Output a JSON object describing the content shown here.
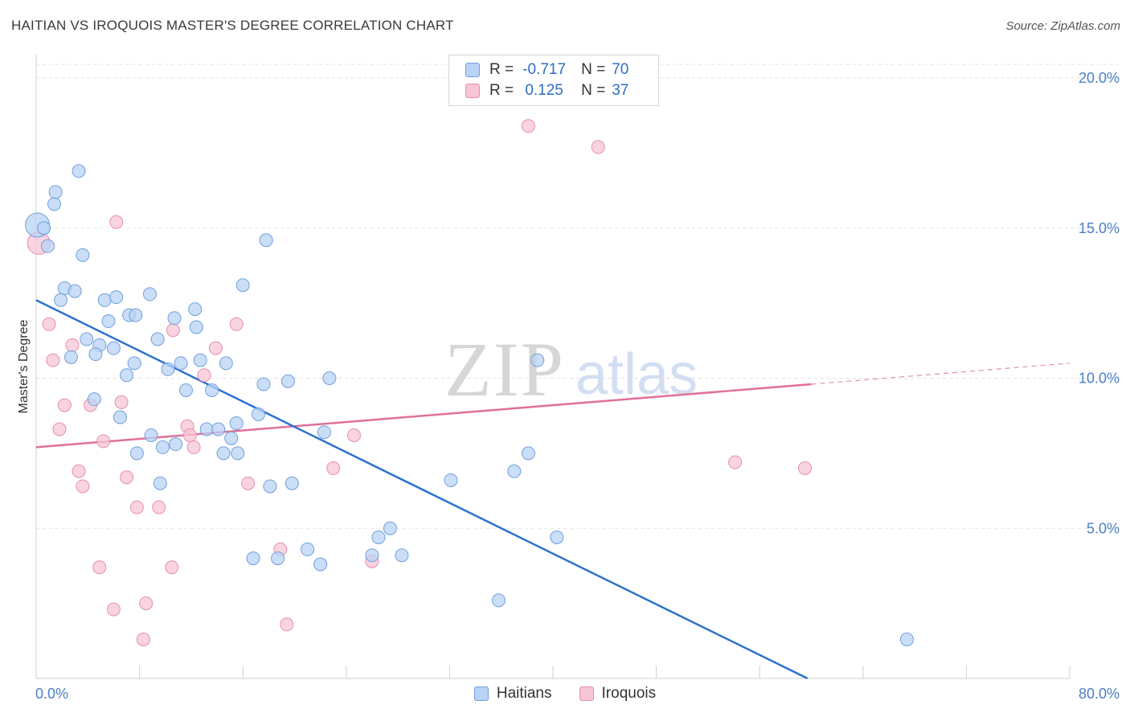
{
  "title": "HAITIAN VS IROQUOIS MASTER'S DEGREE CORRELATION CHART",
  "source": "Source: ZipAtlas.com",
  "watermark": {
    "zip": "ZIP",
    "atlas": "atlas"
  },
  "legend": {
    "rows": [
      {
        "r_label": "R =",
        "r_value": "-0.717",
        "n_label": "N =",
        "n_value": "70"
      },
      {
        "r_label": "R =",
        "r_value": "0.125",
        "n_label": "N =",
        "n_value": "37"
      }
    ]
  },
  "colors": {
    "haitians_fill": "#b9d3f4",
    "haitians_stroke": "#6f9fdc",
    "haitians_line": "#2b72cf",
    "iroquois_fill": "#f7c5d5",
    "iroquois_stroke": "#e58fab",
    "iroquois_line": "#e0709a"
  },
  "chart_data": {
    "type": "scatter",
    "ylabel": "Master's Degree",
    "xlim": [
      0,
      80
    ],
    "ylim": [
      0,
      20
    ],
    "x_tick_labels": [
      "0.0%",
      "80.0%"
    ],
    "y_ticks": [
      5,
      10,
      15,
      20
    ],
    "y_tick_labels": [
      "5.0%",
      "10.0%",
      "15.0%",
      "20.0%"
    ],
    "grid": true,
    "series": [
      {
        "name": "Haitians",
        "points": [
          [
            0.1,
            15.1
          ],
          [
            1.4,
            15.8
          ],
          [
            0.6,
            15.0
          ],
          [
            0.9,
            14.4
          ],
          [
            1.5,
            16.2
          ],
          [
            3.3,
            16.9
          ],
          [
            3.6,
            14.1
          ],
          [
            17.8,
            14.6
          ],
          [
            16.0,
            13.1
          ],
          [
            2.2,
            13.0
          ],
          [
            3.0,
            12.9
          ],
          [
            1.9,
            12.6
          ],
          [
            5.3,
            12.6
          ],
          [
            6.2,
            12.7
          ],
          [
            8.8,
            12.8
          ],
          [
            7.2,
            12.1
          ],
          [
            7.7,
            12.1
          ],
          [
            5.6,
            11.9
          ],
          [
            10.7,
            12.0
          ],
          [
            12.3,
            12.3
          ],
          [
            12.4,
            11.7
          ],
          [
            3.9,
            11.3
          ],
          [
            9.4,
            11.3
          ],
          [
            4.9,
            11.1
          ],
          [
            6.0,
            11.0
          ],
          [
            4.6,
            10.8
          ],
          [
            2.7,
            10.7
          ],
          [
            7.6,
            10.5
          ],
          [
            11.2,
            10.5
          ],
          [
            12.7,
            10.6
          ],
          [
            14.7,
            10.5
          ],
          [
            10.2,
            10.3
          ],
          [
            7.0,
            10.1
          ],
          [
            17.6,
            9.8
          ],
          [
            19.5,
            9.9
          ],
          [
            22.7,
            10.0
          ],
          [
            38.8,
            10.6
          ],
          [
            11.6,
            9.6
          ],
          [
            13.6,
            9.6
          ],
          [
            4.5,
            9.3
          ],
          [
            6.5,
            8.7
          ],
          [
            17.2,
            8.8
          ],
          [
            15.5,
            8.5
          ],
          [
            8.9,
            8.1
          ],
          [
            13.2,
            8.3
          ],
          [
            14.1,
            8.3
          ],
          [
            15.1,
            8.0
          ],
          [
            22.3,
            8.2
          ],
          [
            9.8,
            7.7
          ],
          [
            10.8,
            7.8
          ],
          [
            7.8,
            7.5
          ],
          [
            14.5,
            7.5
          ],
          [
            15.6,
            7.5
          ],
          [
            38.1,
            7.5
          ],
          [
            37.0,
            6.9
          ],
          [
            9.6,
            6.5
          ],
          [
            18.1,
            6.4
          ],
          [
            19.8,
            6.5
          ],
          [
            32.1,
            6.6
          ],
          [
            27.4,
            5.0
          ],
          [
            26.5,
            4.7
          ],
          [
            40.3,
            4.7
          ],
          [
            21.0,
            4.3
          ],
          [
            16.8,
            4.0
          ],
          [
            18.7,
            4.0
          ],
          [
            26.0,
            4.1
          ],
          [
            28.3,
            4.1
          ],
          [
            22.0,
            3.8
          ],
          [
            35.8,
            2.6
          ],
          [
            67.4,
            1.3
          ]
        ],
        "trendline": {
          "x": [
            0,
            59.7
          ],
          "y": [
            12.6,
            0
          ]
        }
      },
      {
        "name": "Iroquois",
        "points": [
          [
            0.2,
            14.5
          ],
          [
            6.2,
            15.2
          ],
          [
            1.0,
            11.8
          ],
          [
            1.3,
            10.6
          ],
          [
            2.2,
            9.1
          ],
          [
            2.8,
            11.1
          ],
          [
            1.8,
            8.3
          ],
          [
            5.2,
            7.9
          ],
          [
            6.6,
            9.2
          ],
          [
            4.2,
            9.1
          ],
          [
            3.3,
            6.9
          ],
          [
            3.6,
            6.4
          ],
          [
            7.0,
            6.7
          ],
          [
            7.8,
            5.7
          ],
          [
            9.5,
            5.7
          ],
          [
            4.9,
            3.7
          ],
          [
            10.6,
            11.6
          ],
          [
            15.5,
            11.8
          ],
          [
            13.9,
            11.0
          ],
          [
            13.0,
            10.1
          ],
          [
            11.7,
            8.4
          ],
          [
            11.9,
            8.1
          ],
          [
            12.2,
            7.7
          ],
          [
            16.4,
            6.5
          ],
          [
            24.6,
            8.1
          ],
          [
            23.0,
            7.0
          ],
          [
            18.9,
            4.3
          ],
          [
            26.0,
            3.9
          ],
          [
            10.5,
            3.7
          ],
          [
            6.0,
            2.3
          ],
          [
            8.5,
            2.5
          ],
          [
            8.3,
            1.3
          ],
          [
            19.4,
            1.8
          ],
          [
            38.1,
            18.4
          ],
          [
            43.5,
            17.7
          ],
          [
            54.1,
            7.2
          ],
          [
            59.5,
            7.0
          ]
        ],
        "trendline": {
          "x": [
            0,
            60.0
          ],
          "y": [
            7.7,
            9.8
          ]
        },
        "trendline_extension": {
          "x": [
            60.0,
            80.0
          ],
          "y": [
            9.8,
            10.5
          ]
        }
      }
    ]
  }
}
